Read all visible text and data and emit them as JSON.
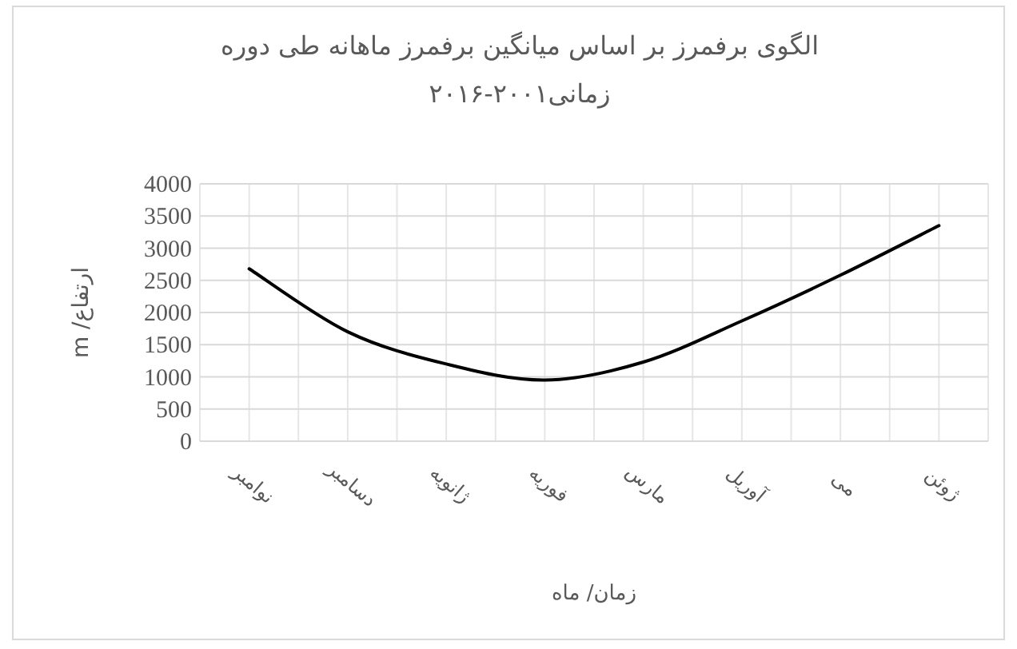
{
  "chart_data": {
    "type": "line",
    "title": "الگوی برفمرز بر اساس میانگین برفمرز ماهانه طی دوره زمانی۲۰۰۱-۲۰۱۶",
    "xlabel": "زمان/ ماه",
    "ylabel": "ارتفاع/ m",
    "categories": [
      "نوامبر",
      "دسامبر",
      "ژانویه",
      "فوریه",
      "مارس",
      "آوریل",
      "می",
      "ژوئن"
    ],
    "series": [
      {
        "color": "#000000",
        "values": [
          2680,
          1700,
          1200,
          950,
          1230,
          1870,
          2580,
          3350
        ]
      }
    ],
    "ylim": [
      0,
      4000
    ],
    "yticks": [
      0,
      500,
      1000,
      1500,
      2000,
      2500,
      3000,
      3500,
      4000
    ],
    "grid": true
  }
}
